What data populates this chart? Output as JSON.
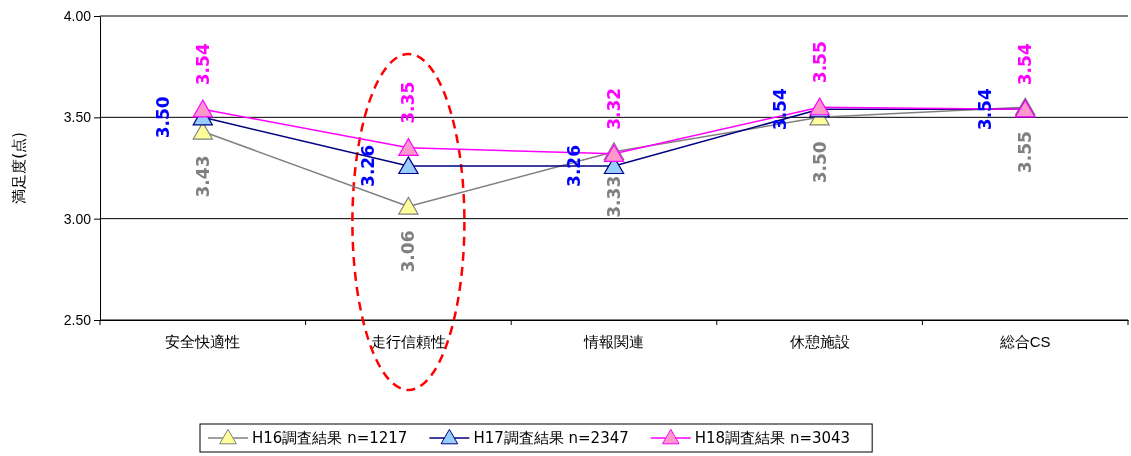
{
  "chart_data": {
    "type": "line",
    "ylabel": "満足度(点)",
    "categories": [
      "安全快適性",
      "走行信頼性",
      "情報関連",
      "休憩施設",
      "総合CS"
    ],
    "series": [
      {
        "name": "H16調査結果 n=1217",
        "color": "#808080",
        "values": [
          3.43,
          3.06,
          3.33,
          3.5,
          3.55
        ],
        "value_labels": [
          "3.43",
          "3.06",
          "3.33",
          "3.50",
          "3.55"
        ]
      },
      {
        "name": "H17調査結果 n=2347",
        "color": "#000080",
        "values": [
          3.5,
          3.26,
          3.26,
          3.54,
          3.54
        ],
        "value_labels": [
          "3.50",
          "3.26",
          "3.26",
          "3.54",
          "3.54"
        ]
      },
      {
        "name": "H18調査結果 n=3043",
        "color": "#ff00ff",
        "values": [
          3.54,
          3.35,
          3.32,
          3.55,
          3.54
        ],
        "value_labels": [
          "3.54",
          "3.35",
          "3.32",
          "3.55",
          "3.54"
        ]
      }
    ],
    "ylim": [
      2.5,
      4.0
    ],
    "yticks": [
      {
        "value": 2.5,
        "label": "2.50"
      },
      {
        "value": 3.0,
        "label": "3.00"
      },
      {
        "value": 3.5,
        "label": "3.50"
      },
      {
        "value": 4.0,
        "label": "4.00"
      }
    ],
    "grid": "y",
    "legend": "bottom",
    "marker": "triangle",
    "line_style": "solid"
  }
}
